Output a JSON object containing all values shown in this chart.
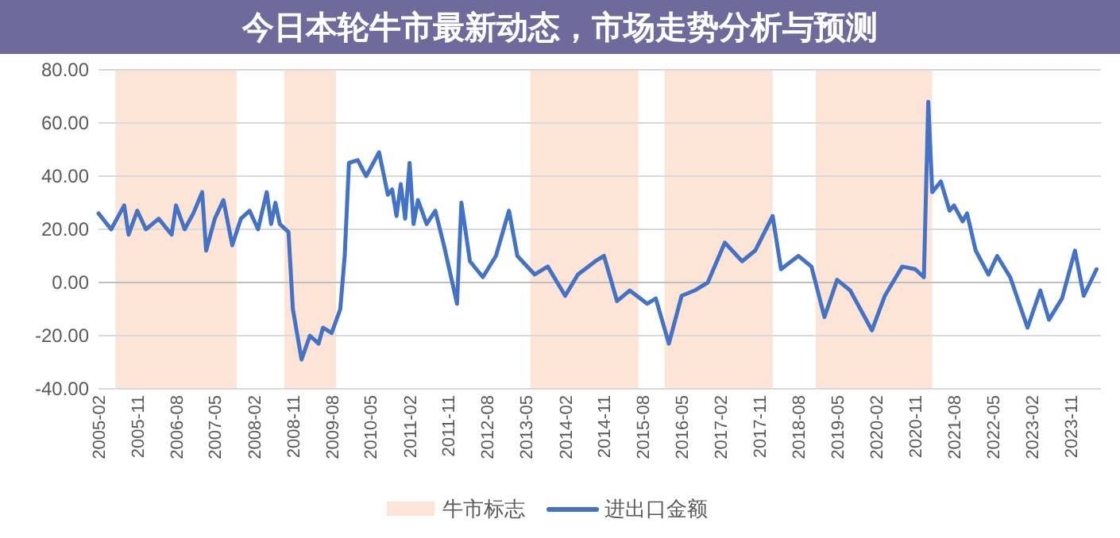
{
  "chart_data": {
    "type": "line",
    "title": "今日本轮牛市最新动态，市场走势分析与预测",
    "xlim": [
      "2005-02",
      "2024-06"
    ],
    "xticks": [
      "2005-02",
      "2005-11",
      "2006-08",
      "2007-05",
      "2008-02",
      "2008-11",
      "2009-08",
      "2010-05",
      "2011-02",
      "2011-11",
      "2012-08",
      "2013-05",
      "2014-02",
      "2014-11",
      "2015-08",
      "2016-05",
      "2017-02",
      "2017-11",
      "2018-08",
      "2019-05",
      "2020-02",
      "2020-11",
      "2021-08",
      "2022-05",
      "2023-02",
      "2023-11"
    ],
    "ylim": [
      -40,
      80
    ],
    "yticks": [
      {
        "value": -40,
        "label": "-40.00"
      },
      {
        "value": -20,
        "label": "-20.00"
      },
      {
        "value": 0,
        "label": "0.00"
      },
      {
        "value": 20,
        "label": "20.00"
      },
      {
        "value": 40,
        "label": "40.00"
      },
      {
        "value": 60,
        "label": "60.00"
      },
      {
        "value": 80,
        "label": "80.00"
      }
    ],
    "grid": "y",
    "legend": "bottom",
    "bands": [
      {
        "axis": "x",
        "from": "2005-06",
        "to": "2007-10",
        "label": "牛市标志",
        "color": "#fce4d6"
      },
      {
        "axis": "x",
        "from": "2008-09",
        "to": "2009-09",
        "color": "#fce4d6"
      },
      {
        "axis": "x",
        "from": "2013-06",
        "to": "2015-07",
        "color": "#fce4d6"
      },
      {
        "axis": "x",
        "from": "2016-01",
        "to": "2018-02",
        "color": "#fce4d6"
      },
      {
        "axis": "x",
        "from": "2018-12",
        "to": "2021-03",
        "color": "#fce4d6"
      }
    ],
    "series": [
      {
        "name": "进出口金额",
        "color": "#4472c4",
        "x": [
          "2005-02",
          "2005-04",
          "2005-05",
          "2005-08",
          "2005-09",
          "2005-11",
          "2006-01",
          "2006-04",
          "2006-07",
          "2006-08",
          "2006-10",
          "2006-12",
          "2007-02",
          "2007-03",
          "2007-05",
          "2007-07",
          "2007-09",
          "2007-11",
          "2008-01",
          "2008-03",
          "2008-05",
          "2008-06",
          "2008-07",
          "2008-08",
          "2008-10",
          "2008-11",
          "2009-01",
          "2009-03",
          "2009-05",
          "2009-06",
          "2009-08",
          "2009-10",
          "2009-11",
          "2009-12",
          "2010-02",
          "2010-04",
          "2010-07",
          "2010-09",
          "2010-10",
          "2010-11",
          "2010-12",
          "2011-01",
          "2011-02",
          "2011-03",
          "2011-04",
          "2011-06",
          "2011-08",
          "2011-10",
          "2012-01",
          "2012-02",
          "2012-04",
          "2012-07",
          "2012-10",
          "2013-01",
          "2013-03",
          "2013-07",
          "2013-10",
          "2014-02",
          "2014-05",
          "2014-09",
          "2014-11",
          "2015-02",
          "2015-05",
          "2015-09",
          "2015-11",
          "2016-02",
          "2016-05",
          "2016-08",
          "2016-11",
          "2017-03",
          "2017-07",
          "2017-10",
          "2018-02",
          "2018-04",
          "2018-08",
          "2018-11",
          "2019-02",
          "2019-05",
          "2019-08",
          "2020-01",
          "2020-04",
          "2020-08",
          "2020-11",
          "2021-01",
          "2021-02",
          "2021-03",
          "2021-05",
          "2021-07",
          "2021-08",
          "2021-10",
          "2021-11",
          "2022-01",
          "2022-04",
          "2022-06",
          "2022-09",
          "2023-01",
          "2023-04",
          "2023-06",
          "2023-09",
          "2023-12",
          "2024-02",
          "2024-05"
        ],
        "values": [
          26,
          22,
          20,
          29,
          18,
          27,
          20,
          24,
          18,
          29,
          20,
          26,
          34,
          12,
          24,
          31,
          14,
          24,
          27,
          20,
          34,
          22,
          30,
          22,
          19,
          -10,
          -29,
          -20,
          -23,
          -17,
          -19,
          -10,
          10,
          45,
          46,
          40,
          49,
          33,
          35,
          25,
          37,
          24,
          45,
          22,
          31,
          22,
          27,
          14,
          -8,
          30,
          8,
          2,
          10,
          27,
          10,
          3,
          6,
          -5,
          3,
          8,
          10,
          -7,
          -3,
          -8,
          -6,
          -23,
          -5,
          -3,
          0,
          15,
          8,
          12,
          25,
          5,
          10,
          6,
          -13,
          1,
          -3,
          -18,
          -5,
          6,
          5,
          2,
          68,
          34,
          38,
          27,
          29,
          23,
          26,
          12,
          3,
          10,
          2,
          -17,
          -3,
          -14,
          -6,
          12,
          -5,
          5
        ]
      }
    ]
  }
}
